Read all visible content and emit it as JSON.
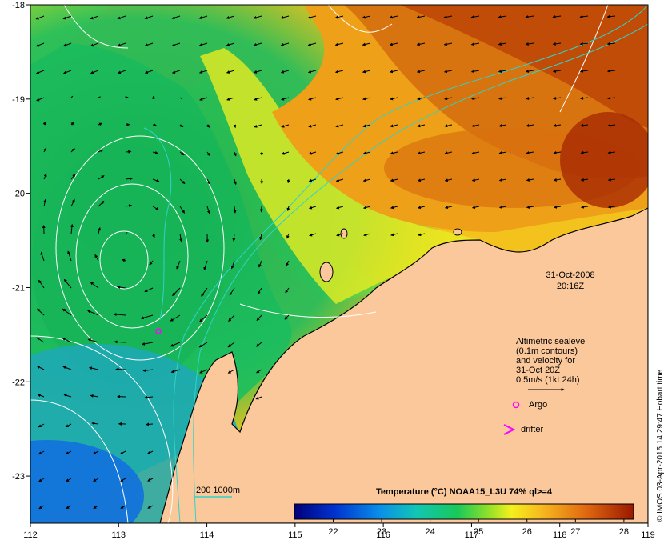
{
  "map": {
    "lon_ticks": [
      "112",
      "113",
      "114",
      "115",
      "116",
      "117",
      "118",
      "119"
    ],
    "lat_ticks": [
      "-18",
      "-19",
      "-20",
      "-21",
      "-22",
      "-23"
    ],
    "lon_range": [
      112,
      119
    ],
    "lat_range": [
      -23.5,
      -18
    ]
  },
  "timestamp": {
    "date": "31-Oct-2008",
    "time": "20:16Z"
  },
  "legend": {
    "lines": [
      "Altimetric sealevel",
      "(0.1m contours)",
      "and velocity for",
      "31-Oct 20Z",
      "0.5m/s (1kt 24h)"
    ],
    "argo_label": "Argo",
    "drifter_label": "drifter",
    "depth_label": "200  1000m"
  },
  "colorbar": {
    "title": "Temperature (°C) NOAA15_L3U 74% ql>=4",
    "ticks": [
      "22",
      "23",
      "24",
      "25",
      "26",
      "27",
      "28"
    ],
    "range": [
      21.2,
      28.2
    ]
  },
  "credit": "© IMOS 03-Apr-2015 14:29:47 Hobart time",
  "colors": {
    "land": "#fbc89b",
    "coast": "#000000",
    "contour": "#ffffff",
    "bathy": "#2fd3c8",
    "argo": "#ff00ff",
    "drifter": "#ff00ff"
  }
}
